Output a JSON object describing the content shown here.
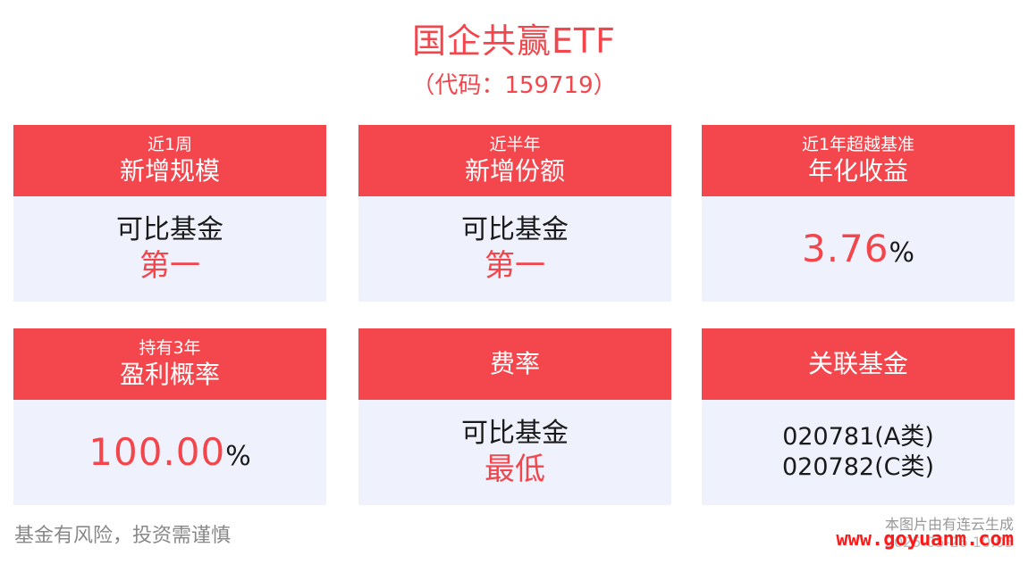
{
  "header": {
    "title": "国企共赢ETF",
    "subtitle": "（代码：159719）"
  },
  "cards": [
    {
      "head_small": "近1周",
      "head_big": "新增规模",
      "body_line1": "可比基金",
      "body_line2": "第一"
    },
    {
      "head_small": "近半年",
      "head_big": "新增份额",
      "body_line1": "可比基金",
      "body_line2": "第一"
    },
    {
      "head_small": "近1年超越基准",
      "head_big": "年化收益",
      "value": "3.76",
      "unit": "%"
    },
    {
      "head_small": "持有3年",
      "head_big": "盈利概率",
      "value": "100.00",
      "unit": "%"
    },
    {
      "head_big": "费率",
      "body_line1": "可比基金",
      "body_line2": "最低"
    },
    {
      "head_big": "关联基金",
      "codes": [
        "020781(A类)",
        "020782(C类)"
      ]
    }
  ],
  "footer": {
    "disclaimer": "基金有风险，投资需谨慎",
    "generated_note": "本图片由有连云生成",
    "generated_date": "2025-05-26 10:05",
    "watermark": "www.goyuanm.com"
  },
  "colors": {
    "accent_red": "#f4474d",
    "card_body_bg": "#eff2fc"
  }
}
